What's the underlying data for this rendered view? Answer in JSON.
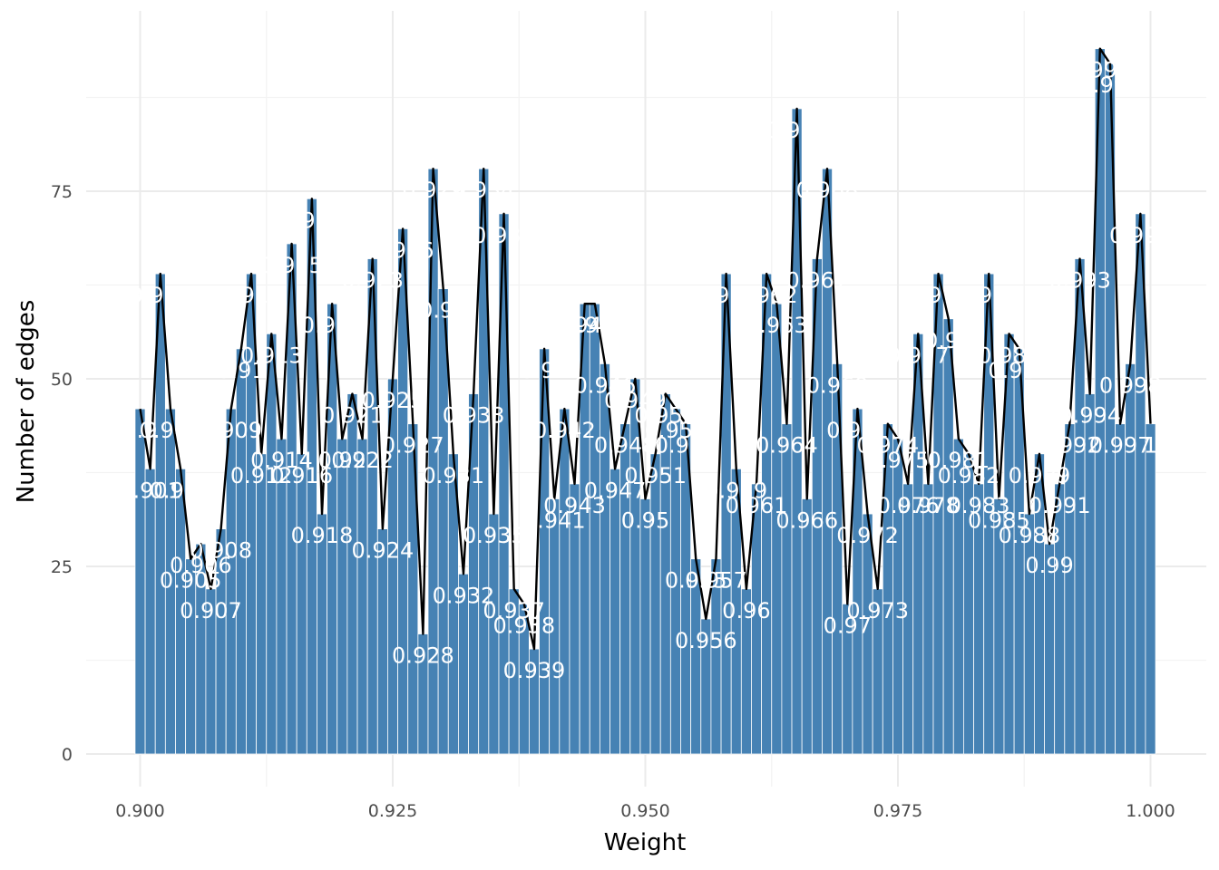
{
  "chart_data": {
    "type": "bar",
    "xlabel": "Weight",
    "ylabel": "Number of edges",
    "xlim": [
      0.9,
      1.0
    ],
    "ylim": [
      0,
      95
    ],
    "xticks": [
      0.9,
      0.925,
      0.95,
      0.975,
      1.0
    ],
    "xtick_labels": [
      "0.900",
      "0.925",
      "0.950",
      "0.975",
      "1.000"
    ],
    "yticks": [
      0,
      25,
      50,
      75
    ],
    "ytick_labels": [
      "0",
      "25",
      "50",
      "75"
    ],
    "grid": true,
    "bar_color": "#4682b4",
    "line_color": "#000000",
    "label_color": "#ffffff",
    "overlay": "line",
    "x": [
      0.9,
      0.901,
      0.902,
      0.903,
      0.904,
      0.905,
      0.906,
      0.907,
      0.908,
      0.909,
      0.91,
      0.911,
      0.912,
      0.913,
      0.914,
      0.915,
      0.916,
      0.917,
      0.918,
      0.919,
      0.92,
      0.921,
      0.922,
      0.923,
      0.924,
      0.925,
      0.926,
      0.927,
      0.928,
      0.929,
      0.93,
      0.931,
      0.932,
      0.933,
      0.934,
      0.935,
      0.936,
      0.937,
      0.938,
      0.939,
      0.94,
      0.941,
      0.942,
      0.943,
      0.944,
      0.945,
      0.946,
      0.947,
      0.948,
      0.949,
      0.95,
      0.951,
      0.952,
      0.953,
      0.954,
      0.955,
      0.956,
      0.957,
      0.958,
      0.959,
      0.96,
      0.961,
      0.962,
      0.963,
      0.964,
      0.965,
      0.966,
      0.967,
      0.968,
      0.969,
      0.97,
      0.971,
      0.972,
      0.973,
      0.974,
      0.975,
      0.976,
      0.977,
      0.978,
      0.979,
      0.98,
      0.981,
      0.982,
      0.983,
      0.984,
      0.985,
      0.986,
      0.987,
      0.988,
      0.989,
      0.99,
      0.991,
      0.992,
      0.993,
      0.994,
      0.995,
      0.996,
      0.997,
      0.998,
      0.999,
      1.0
    ],
    "values": [
      46,
      38,
      64,
      46,
      38,
      26,
      28,
      22,
      30,
      46,
      54,
      64,
      40,
      56,
      42,
      68,
      40,
      74,
      32,
      60,
      42,
      48,
      42,
      66,
      30,
      50,
      70,
      44,
      16,
      78,
      62,
      40,
      24,
      48,
      78,
      32,
      72,
      22,
      20,
      14,
      54,
      34,
      46,
      36,
      60,
      60,
      52,
      38,
      44,
      50,
      34,
      40,
      48,
      46,
      44,
      26,
      18,
      26,
      64,
      38,
      22,
      36,
      64,
      60,
      44,
      86,
      34,
      66,
      78,
      52,
      20,
      46,
      32,
      22,
      44,
      42,
      36,
      56,
      36,
      64,
      58,
      42,
      40,
      36,
      64,
      34,
      56,
      54,
      32,
      40,
      28,
      36,
      44,
      66,
      48,
      94,
      92,
      44,
      52,
      72,
      44
    ],
    "labels": [
      "0.9",
      "0.901",
      "0.902",
      "0.903",
      "0.904",
      "0.905",
      "0.906",
      "0.907",
      "0.908",
      "0.909",
      "0.91",
      "0.911",
      "0.912",
      "0.913",
      "0.914",
      "0.915",
      "0.916",
      "0.917",
      "0.918",
      "0.919",
      "0.92",
      "0.921",
      "0.922",
      "0.923",
      "0.924",
      "0.925",
      "0.926",
      "0.927",
      "0.928",
      "0.929",
      "0.93",
      "0.931",
      "0.932",
      "0.933",
      "0.934",
      "0.935",
      "0.936",
      "0.937",
      "0.938",
      "0.939",
      "0.94",
      "0.941",
      "0.942",
      "0.943",
      "0.944",
      "0.945",
      "0.946",
      "0.947",
      "0.948",
      "0.949",
      "0.95",
      "0.951",
      "0.952",
      "0.953",
      "0.954",
      "0.955",
      "0.956",
      "0.957",
      "0.958",
      "0.959",
      "0.96",
      "0.961",
      "0.962",
      "0.963",
      "0.964",
      "0.965",
      "0.966",
      "0.967",
      "0.968",
      "0.969",
      "0.97",
      "0.971",
      "0.972",
      "0.973",
      "0.974",
      "0.975",
      "0.976",
      "0.977",
      "0.978",
      "0.979",
      "0.98",
      "0.981",
      "0.982",
      "0.983",
      "0.984",
      "0.985",
      "0.986",
      "0.987",
      "0.988",
      "0.989",
      "0.99",
      "0.991",
      "0.992",
      "0.993",
      "0.994",
      "0.995",
      "0.996",
      "0.997",
      "0.998",
      "0.999",
      "1"
    ]
  }
}
